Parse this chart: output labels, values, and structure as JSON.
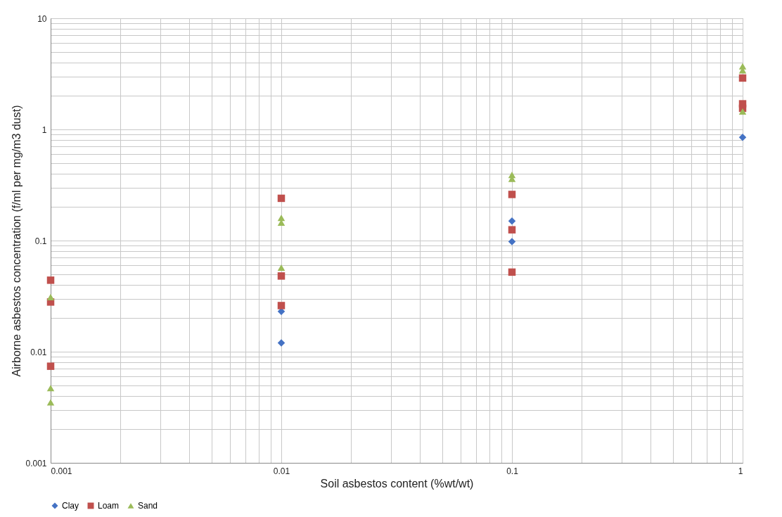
{
  "chart_data": {
    "type": "scatter",
    "xlabel": "Soil asbestos content (%wt/wt)",
    "ylabel": "Airborne asbestos concentration (f/ml per mg/m3 dust)",
    "log": "xy",
    "grid": true,
    "legend": "bottom",
    "xlim": [
      0.001,
      1
    ],
    "ylim": [
      0.001,
      10
    ],
    "xticks": [
      {
        "value": 0.001,
        "label": "0.001"
      },
      {
        "value": 0.002,
        "label": null
      },
      {
        "value": 0.003,
        "label": null
      },
      {
        "value": 0.004,
        "label": null
      },
      {
        "value": 0.005,
        "label": null
      },
      {
        "value": 0.006,
        "label": null
      },
      {
        "value": 0.007,
        "label": null
      },
      {
        "value": 0.008,
        "label": null
      },
      {
        "value": 0.009,
        "label": null
      },
      {
        "value": 0.01,
        "label": "0.01"
      },
      {
        "value": 0.02,
        "label": null
      },
      {
        "value": 0.03,
        "label": null
      },
      {
        "value": 0.04,
        "label": null
      },
      {
        "value": 0.05,
        "label": null
      },
      {
        "value": 0.06,
        "label": null
      },
      {
        "value": 0.07,
        "label": null
      },
      {
        "value": 0.08,
        "label": null
      },
      {
        "value": 0.09,
        "label": null
      },
      {
        "value": 0.1,
        "label": "0.1"
      },
      {
        "value": 0.2,
        "label": null
      },
      {
        "value": 0.3,
        "label": null
      },
      {
        "value": 0.4,
        "label": null
      },
      {
        "value": 0.5,
        "label": null
      },
      {
        "value": 0.6,
        "label": null
      },
      {
        "value": 0.7,
        "label": null
      },
      {
        "value": 0.8,
        "label": null
      },
      {
        "value": 0.9,
        "label": null
      },
      1
    ],
    "yticks": [
      {
        "value": 0.001,
        "label": "0.001"
      },
      {
        "value": 0.002,
        "label": null
      },
      {
        "value": 0.003,
        "label": null
      },
      {
        "value": 0.004,
        "label": null
      },
      {
        "value": 0.005,
        "label": null
      },
      {
        "value": 0.006,
        "label": null
      },
      {
        "value": 0.007,
        "label": null
      },
      {
        "value": 0.008,
        "label": null
      },
      {
        "value": 0.009,
        "label": null
      },
      {
        "value": 0.01,
        "label": "0.01"
      },
      {
        "value": 0.02,
        "label": null
      },
      {
        "value": 0.03,
        "label": null
      },
      {
        "value": 0.04,
        "label": null
      },
      {
        "value": 0.05,
        "label": null
      },
      {
        "value": 0.06,
        "label": null
      },
      {
        "value": 0.07,
        "label": null
      },
      {
        "value": 0.08,
        "label": null
      },
      {
        "value": 0.09,
        "label": null
      },
      {
        "value": 0.1,
        "label": "0.1"
      },
      {
        "value": 0.2,
        "label": null
      },
      {
        "value": 0.3,
        "label": null
      },
      {
        "value": 0.4,
        "label": null
      },
      {
        "value": 0.5,
        "label": null
      },
      {
        "value": 0.6,
        "label": null
      },
      {
        "value": 0.7,
        "label": null
      },
      {
        "value": 0.8,
        "label": null
      },
      {
        "value": 0.9,
        "label": null
      },
      1,
      {
        "value": 2,
        "label": null
      },
      {
        "value": 3,
        "label": null
      },
      {
        "value": 4,
        "label": null
      },
      {
        "value": 5,
        "label": null
      },
      {
        "value": 6,
        "label": null
      },
      {
        "value": 7,
        "label": null
      },
      {
        "value": 8,
        "label": null
      },
      {
        "value": 9,
        "label": null
      },
      10
    ],
    "series": [
      {
        "name": "Clay",
        "color": "#4472c4",
        "marker": "diamond",
        "x": [
          0.01,
          0.01,
          0.1,
          0.1,
          1
        ],
        "values": [
          0.023,
          0.012,
          0.15,
          0.098,
          0.85
        ]
      },
      {
        "name": "Loam",
        "color": "#c0504d",
        "marker": "square",
        "x": [
          0.001,
          0.001,
          0.001,
          0.01,
          0.01,
          0.01,
          0.1,
          0.1,
          0.1,
          1,
          1,
          1
        ],
        "values": [
          0.044,
          0.028,
          0.0074,
          0.24,
          0.048,
          0.026,
          0.26,
          0.125,
          0.052,
          2.9,
          1.7,
          1.55
        ]
      },
      {
        "name": "Sand",
        "color": "#9bbb59",
        "marker": "triangle",
        "x": [
          0.001,
          0.001,
          0.001,
          0.01,
          0.01,
          0.01,
          0.1,
          0.1,
          1,
          1,
          1
        ],
        "values": [
          0.031,
          0.0047,
          0.0035,
          0.16,
          0.145,
          0.057,
          0.39,
          0.36,
          3.7,
          3.4,
          1.45
        ]
      }
    ]
  }
}
